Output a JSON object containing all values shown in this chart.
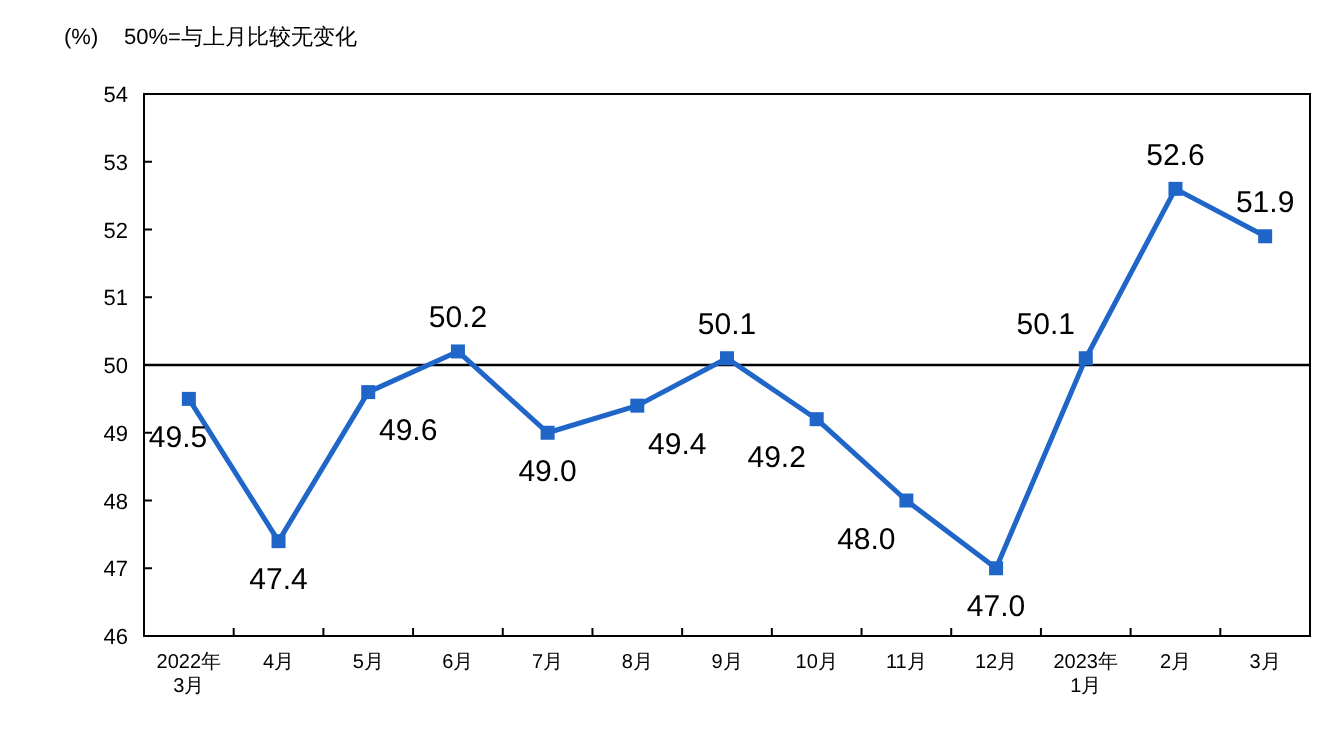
{
  "chart_data": {
    "type": "line",
    "annotations": [
      "(%)",
      "50%=与上月比较无变化"
    ],
    "categories": [
      "2022年\n3月",
      "4月",
      "5月",
      "6月",
      "7月",
      "8月",
      "9月",
      "10月",
      "11月",
      "12月",
      "2023年\n1月",
      "2月",
      "3月"
    ],
    "series": [
      {
        "color": "#1f66c8",
        "values": [
          49.5,
          47.4,
          49.6,
          50.2,
          49.0,
          49.4,
          50.1,
          49.2,
          48.0,
          47.0,
          50.1,
          52.6,
          51.9
        ],
        "value_labels": [
          "49.5",
          "47.4",
          "49.6",
          "50.2",
          "49.0",
          "49.4",
          "50.1",
          "49.2",
          "48.0",
          "47.0",
          "50.1",
          "52.6",
          "51.9"
        ]
      }
    ],
    "ylim": [
      46,
      54
    ],
    "yticks": [
      46,
      47,
      48,
      49,
      50,
      51,
      52,
      53,
      54
    ],
    "grid": false,
    "marker": "square",
    "line_style": "solid",
    "ref_lines": [
      {
        "axis": "y",
        "value": 50,
        "color": "#000000"
      }
    ]
  }
}
